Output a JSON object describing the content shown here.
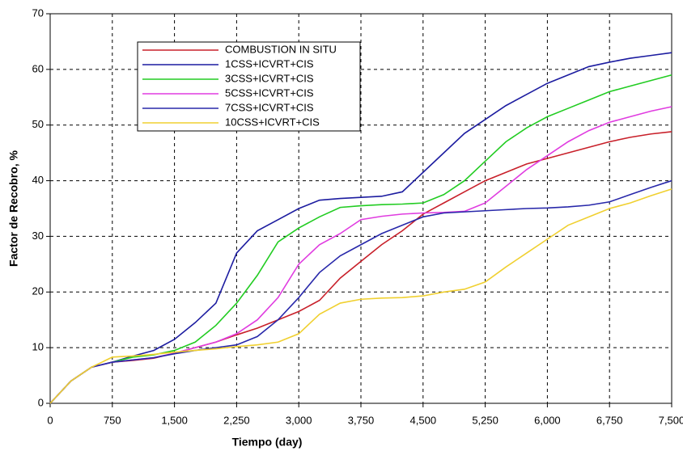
{
  "chart_data": {
    "type": "line",
    "x_label": "Tiempo (day)",
    "y_label": "Factor de Recobro, %",
    "x": [
      0,
      250,
      500,
      750,
      1000,
      1250,
      1500,
      1750,
      2000,
      2250,
      2500,
      2750,
      3000,
      3250,
      3500,
      3750,
      4000,
      4250,
      4500,
      4750,
      5000,
      5250,
      5500,
      5750,
      6000,
      6250,
      6500,
      6750,
      7000,
      7250,
      7500
    ],
    "series": [
      {
        "name": "COMBUSTION IN SITU",
        "color": "#c8202a",
        "values": [
          0,
          4,
          6.5,
          7.4,
          7.7,
          8.1,
          9,
          10,
          11,
          12.3,
          13.5,
          15,
          16.5,
          18.5,
          22.5,
          25.5,
          28.5,
          31,
          34,
          36,
          38,
          40,
          41.5,
          43,
          44,
          45,
          46,
          47,
          47.8,
          48.4,
          48.8
        ]
      },
      {
        "name": "1CSS+ICVRT+CIS",
        "color": "#1c1ca0",
        "values": [
          0,
          4,
          6.5,
          7.4,
          8.5,
          9.5,
          11.5,
          14.5,
          18,
          27,
          31,
          33,
          35,
          36.5,
          36.8,
          37,
          37.2,
          38,
          41.5,
          45,
          48.5,
          51,
          53.5,
          55.5,
          57.5,
          59,
          60.5,
          61.3,
          62,
          62.5,
          63
        ]
      },
      {
        "name": "3CSS+ICVRT+CIS",
        "color": "#22cc22",
        "values": [
          0,
          4,
          6.5,
          7.4,
          8.3,
          8.7,
          9.5,
          11,
          14,
          18,
          23,
          29,
          31.5,
          33.5,
          35.2,
          35.5,
          35.7,
          35.8,
          36,
          37.5,
          40,
          43.5,
          47,
          49.5,
          51.5,
          53,
          54.5,
          56,
          57,
          58,
          59
        ]
      },
      {
        "name": "5CSS+ICVRT+CIS",
        "color": "#e03ce0",
        "values": [
          0,
          4,
          6.5,
          7.4,
          7.8,
          8.2,
          9,
          10,
          11,
          12.5,
          15,
          19,
          25,
          28.5,
          30.5,
          33,
          33.6,
          34,
          34.2,
          34.3,
          34.5,
          36,
          39,
          42,
          44.5,
          47,
          49,
          50.5,
          51.5,
          52.5,
          53.3
        ]
      },
      {
        "name": "7CSS+ICVRT+CIS",
        "color": "#2828aa",
        "values": [
          0,
          4,
          6.5,
          7.4,
          7.8,
          8.2,
          8.9,
          9.5,
          10,
          10.5,
          12,
          15,
          19,
          23.5,
          26.5,
          28.5,
          30.5,
          32,
          33.5,
          34.2,
          34.4,
          34.6,
          34.8,
          35,
          35.1,
          35.3,
          35.6,
          36.2,
          37.5,
          38.8,
          40
        ]
      },
      {
        "name": "10CSS+ICVRT+CIS",
        "color": "#f0d030",
        "values": [
          0,
          4,
          6.5,
          8.3,
          8.5,
          8.8,
          9.2,
          9.5,
          9.8,
          10.2,
          10.5,
          11,
          12.5,
          16,
          18,
          18.7,
          18.9,
          19,
          19.3,
          20,
          20.5,
          21.8,
          24.5,
          27,
          29.5,
          32,
          33.5,
          35,
          36,
          37.3,
          38.5
        ]
      }
    ],
    "xlim": [
      0,
      7500
    ],
    "ylim": [
      0,
      70
    ],
    "xticks": [
      0,
      750,
      {
        "value": 1500,
        "label": "1,500"
      },
      {
        "value": 2250,
        "label": "2,250"
      },
      {
        "value": 3000,
        "label": "3,000"
      },
      {
        "value": 3750,
        "label": "3,750"
      },
      {
        "value": 4500,
        "label": "4,500"
      },
      {
        "value": 5250,
        "label": "5,250"
      },
      {
        "value": 6000,
        "label": "6,000"
      },
      {
        "value": 6750,
        "label": "6,750"
      },
      {
        "value": 7500,
        "label": "7,500"
      }
    ],
    "yticks": [
      0,
      10,
      20,
      30,
      40,
      50,
      60,
      70
    ],
    "grid": true
  }
}
